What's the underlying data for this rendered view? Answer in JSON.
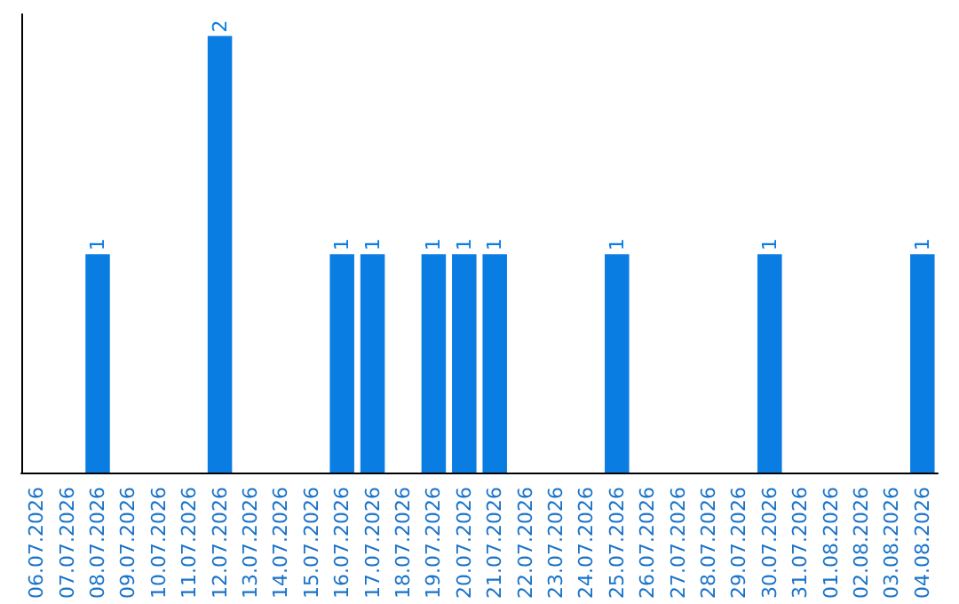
{
  "chart_data": {
    "type": "bar",
    "categories": [
      "06.07.2026",
      "07.07.2026",
      "08.07.2026",
      "09.07.2026",
      "10.07.2026",
      "11.07.2026",
      "12.07.2026",
      "13.07.2026",
      "14.07.2026",
      "15.07.2026",
      "16.07.2026",
      "17.07.2026",
      "18.07.2026",
      "19.07.2026",
      "20.07.2026",
      "21.07.2026",
      "22.07.2026",
      "23.07.2026",
      "24.07.2026",
      "25.07.2026",
      "26.07.2026",
      "27.07.2026",
      "28.07.2026",
      "29.07.2026",
      "30.07.2026",
      "31.07.2026",
      "01.08.2026",
      "02.08.2026",
      "03.08.2026",
      "04.08.2026"
    ],
    "values": [
      0,
      0,
      1,
      0,
      0,
      0,
      2,
      0,
      0,
      0,
      1,
      1,
      0,
      1,
      1,
      1,
      0,
      0,
      0,
      1,
      0,
      0,
      0,
      0,
      1,
      0,
      0,
      0,
      0,
      1
    ],
    "value_labels": [
      null,
      null,
      "1",
      null,
      null,
      null,
      "2",
      null,
      null,
      null,
      "1",
      "1",
      null,
      "1",
      "1",
      "1",
      null,
      null,
      null,
      "1",
      null,
      null,
      null,
      null,
      "1",
      null,
      null,
      null,
      null,
      "1"
    ],
    "color": "#0a7de3",
    "ylim": [
      0,
      2.1
    ],
    "tick_labels": "x"
  }
}
